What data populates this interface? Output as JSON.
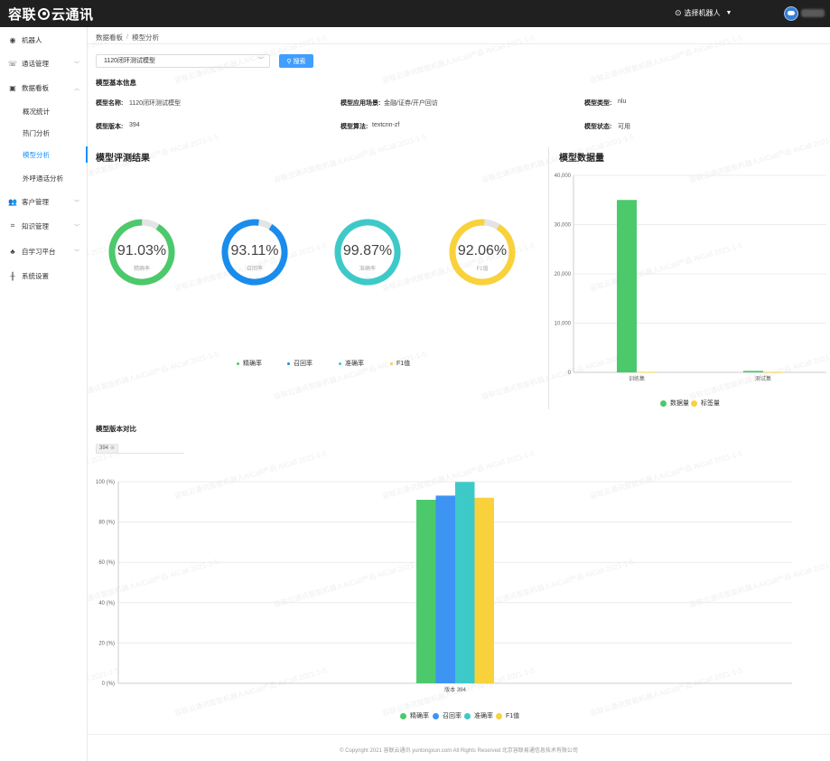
{
  "brand": {
    "logo_left": "容联",
    "logo_right": "云通讯"
  },
  "header": {
    "robot_select_label": "选择机器人"
  },
  "sidebar": {
    "items": [
      {
        "label": "机器人"
      },
      {
        "label": "通话管理"
      },
      {
        "label": "数据看板"
      },
      {
        "label": "客户管理"
      },
      {
        "label": "知识管理"
      },
      {
        "label": "自学习平台"
      },
      {
        "label": "系统设置"
      }
    ],
    "sub_items": [
      {
        "label": "概况统计"
      },
      {
        "label": "热门分析"
      },
      {
        "label": "模型分析"
      },
      {
        "label": "外呼通话分析"
      }
    ]
  },
  "breadcrumb": {
    "root": "数据看板",
    "separator": "/",
    "current": "模型分析"
  },
  "search": {
    "selected_model": "1120闭环测试模型",
    "button_label": "搜索"
  },
  "basic_info": {
    "title": "模型基本信息",
    "name_label": "模型名称:",
    "name_value": "1120闭环测试模型",
    "scene_label": "模型应用场景:",
    "scene_value": "金融/证券/开户回访",
    "type_label": "模型类型:",
    "type_value": "nlu",
    "version_label": "模型版本:",
    "version_value": "394",
    "algo_label": "模型算法:",
    "algo_value": "textcnn-zf",
    "status_label": "模型状态:",
    "status_value": "可用"
  },
  "evaluation": {
    "title": "模型评测结果",
    "metrics": [
      {
        "label": "精确率",
        "value_text": "91.03%",
        "value": 91.03,
        "color": "#4cc96b"
      },
      {
        "label": "召回率",
        "value_text": "93.11%",
        "value": 93.11,
        "color": "#1a8ceb"
      },
      {
        "label": "准确率",
        "value_text": "99.87%",
        "value": 99.87,
        "color": "#3ec9c9"
      },
      {
        "label": "F1值",
        "value_text": "92.06%",
        "value": 92.06,
        "color": "#f9d13b"
      }
    ]
  },
  "data_volume": {
    "title": "模型数据量",
    "chart_data": {
      "type": "bar",
      "categories": [
        "训练集",
        "测试集"
      ],
      "series": [
        {
          "name": "数据量",
          "values": [
            35000,
            300
          ],
          "color": "#4cc96b"
        },
        {
          "name": "标签量",
          "values": [
            60,
            40
          ],
          "color": "#f9d13b"
        }
      ],
      "ylim": [
        0,
        40000
      ],
      "yticks": [
        "0",
        "10,000",
        "20,000",
        "30,000",
        "40,000"
      ],
      "legend": "bottom",
      "grid": true
    }
  },
  "version_compare": {
    "title": "模型版本对比",
    "tag_label": "394",
    "chart_data": {
      "type": "bar",
      "categories": [
        "版本 394"
      ],
      "series": [
        {
          "name": "精确率",
          "values": [
            91.03
          ],
          "color": "#4cc96b"
        },
        {
          "name": "召回率",
          "values": [
            93.11
          ],
          "color": "#3d94f3"
        },
        {
          "name": "准确率",
          "values": [
            99.87
          ],
          "color": "#3ec9c9"
        },
        {
          "name": "F1值",
          "values": [
            92.06
          ],
          "color": "#f9d13b"
        }
      ],
      "ylim": [
        0,
        100
      ],
      "yticks": [
        "0 (%)",
        "20 (%)",
        "40 (%)",
        "60 (%)",
        "80 (%)",
        "100 (%)"
      ],
      "legend": "bottom",
      "grid": true
    }
  },
  "footer": {
    "text": "© Copyright 2021  容联云通讯  yuntongxun.com  All Rights Reserved  北京容联易通信息技术有限公司"
  },
  "watermark": {
    "text": "容联云通讯智能机器人AICall产品 AICall 2021-1-5"
  }
}
